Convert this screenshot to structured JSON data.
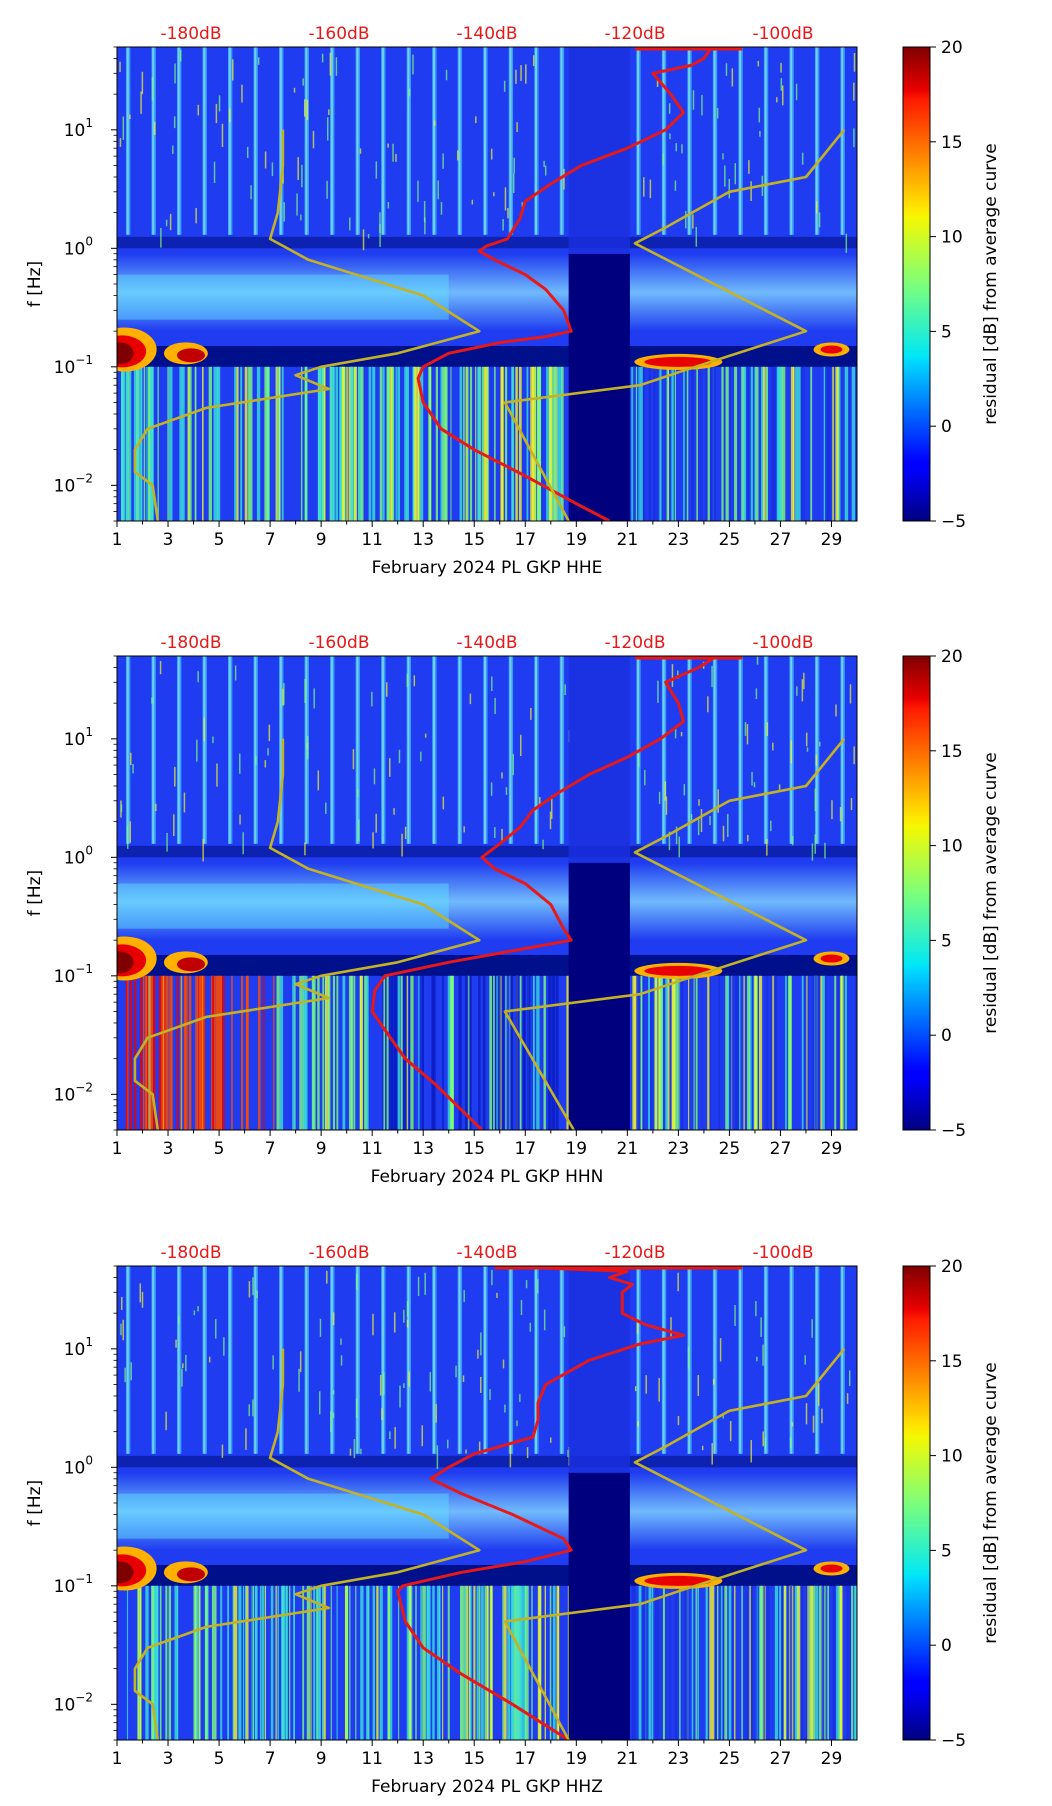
{
  "figure": {
    "colorbar_label": "residual [dB] from average curve",
    "colorbar_ticks": [
      "20",
      "15",
      "10",
      "5",
      "0",
      "−5"
    ],
    "top_ticks": [
      "-180dB",
      "-160dB",
      "-140dB",
      "-120dB",
      "-100dB"
    ],
    "y_label": "f [Hz]"
  },
  "chart_data": [
    {
      "type": "heatmap",
      "xlabel": "February 2024 PL GKP  HHE",
      "ylabel": "f [Hz]",
      "x_ticks": [
        "1",
        "3",
        "5",
        "7",
        "9",
        "11",
        "13",
        "15",
        "17",
        "19",
        "21",
        "23",
        "25",
        "27",
        "29"
      ],
      "y_ticks": [
        "10^1",
        "10^0",
        "10^-1",
        "10^-2"
      ],
      "xlim": [
        1,
        30
      ],
      "ylim_hz": [
        0.005,
        50
      ],
      "y_scale": "log",
      "top_axis": {
        "ticks": [
          "-180dB",
          "-160dB",
          "-140dB",
          "-120dB",
          "-100dB"
        ],
        "color": "#e81818"
      },
      "colorbar": {
        "label": "residual [dB] from average curve",
        "range": [
          -5,
          20
        ],
        "colormap": "jet",
        "ticks": [
          20,
          15,
          10,
          5,
          0,
          -5
        ]
      },
      "data_gap_days": [
        18.7,
        21.1
      ],
      "series": [
        {
          "color": "#e81818",
          "points": [
            [
              24.3,
              50
            ],
            [
              24.0,
              40
            ],
            [
              23.5,
              35
            ],
            [
              22.0,
              30
            ],
            [
              22.7,
              20
            ],
            [
              23.2,
              14
            ],
            [
              22.5,
              10
            ],
            [
              21.0,
              7
            ],
            [
              19.2,
              5
            ],
            [
              18.0,
              3.5
            ],
            [
              17.0,
              2.5
            ],
            [
              16.8,
              1.8
            ],
            [
              16.3,
              1.2
            ],
            [
              15.5,
              1.05
            ],
            [
              15.2,
              0.95
            ],
            [
              15.8,
              0.8
            ],
            [
              17.0,
              0.6
            ],
            [
              17.8,
              0.45
            ],
            [
              18.5,
              0.3
            ],
            [
              18.8,
              0.2
            ],
            [
              17.8,
              0.18
            ],
            [
              16.0,
              0.16
            ],
            [
              14.0,
              0.13
            ],
            [
              13.0,
              0.1
            ],
            [
              12.8,
              0.08
            ],
            [
              13.0,
              0.05
            ],
            [
              13.7,
              0.03
            ],
            [
              15.0,
              0.02
            ],
            [
              17.0,
              0.012
            ],
            [
              19.0,
              0.007
            ],
            [
              20.3,
              0.005
            ]
          ]
        },
        {
          "color": "#c4b225",
          "points": [
            [
              7.5,
              10
            ],
            [
              7.5,
              5
            ],
            [
              7.3,
              2
            ],
            [
              7.0,
              1.2
            ],
            [
              8.5,
              0.8
            ],
            [
              13.0,
              0.4
            ],
            [
              15.2,
              0.2
            ],
            [
              12.0,
              0.13
            ],
            [
              9.0,
              0.1
            ],
            [
              8.0,
              0.085
            ],
            [
              9.3,
              0.065
            ],
            [
              4.5,
              0.045
            ],
            [
              2.2,
              0.03
            ],
            [
              1.7,
              0.02
            ],
            [
              1.7,
              0.013
            ],
            [
              2.4,
              0.01
            ],
            [
              2.6,
              0.005
            ]
          ]
        },
        {
          "color": "#c4b225",
          "points": [
            [
              29.5,
              10
            ],
            [
              28.0,
              4
            ],
            [
              25.0,
              3
            ],
            [
              22.5,
              1.5
            ],
            [
              21.3,
              1.1
            ],
            [
              28.0,
              0.2
            ],
            [
              23.0,
              0.09
            ],
            [
              21.5,
              0.07
            ],
            [
              16.2,
              0.05
            ],
            [
              18.7,
              0.005
            ]
          ]
        }
      ]
    },
    {
      "type": "heatmap",
      "xlabel": "February 2024 PL GKP  HHN",
      "ylabel": "f [Hz]",
      "x_ticks": [
        "1",
        "3",
        "5",
        "7",
        "9",
        "11",
        "13",
        "15",
        "17",
        "19",
        "21",
        "23",
        "25",
        "27",
        "29"
      ],
      "y_ticks": [
        "10^1",
        "10^0",
        "10^-1",
        "10^-2"
      ],
      "xlim": [
        1,
        30
      ],
      "ylim_hz": [
        0.005,
        50
      ],
      "y_scale": "log",
      "top_axis": {
        "ticks": [
          "-180dB",
          "-160dB",
          "-140dB",
          "-120dB",
          "-100dB"
        ],
        "color": "#e81818"
      },
      "colorbar": {
        "label": "residual [dB] from average curve",
        "range": [
          -5,
          20
        ],
        "colormap": "jet",
        "ticks": [
          20,
          15,
          10,
          5,
          0,
          -5
        ]
      },
      "data_gap_days": [
        18.7,
        21.1
      ],
      "series": [
        {
          "color": "#e81818",
          "points": [
            [
              24.5,
              50
            ],
            [
              23.8,
              40
            ],
            [
              22.5,
              30
            ],
            [
              23.0,
              20
            ],
            [
              23.2,
              14
            ],
            [
              22.3,
              10
            ],
            [
              21.0,
              7
            ],
            [
              19.5,
              5
            ],
            [
              18.3,
              3.5
            ],
            [
              17.3,
              2.5
            ],
            [
              16.8,
              1.8
            ],
            [
              16.0,
              1.3
            ],
            [
              15.3,
              1.0
            ],
            [
              15.8,
              0.8
            ],
            [
              17.0,
              0.6
            ],
            [
              18.0,
              0.4
            ],
            [
              18.5,
              0.25
            ],
            [
              18.8,
              0.2
            ],
            [
              17.0,
              0.17
            ],
            [
              14.0,
              0.13
            ],
            [
              11.5,
              0.1
            ],
            [
              11.1,
              0.075
            ],
            [
              11.0,
              0.05
            ],
            [
              11.5,
              0.035
            ],
            [
              12.3,
              0.02
            ],
            [
              13.5,
              0.012
            ],
            [
              15.3,
              0.005
            ]
          ]
        },
        {
          "color": "#c4b225",
          "points": [
            [
              7.5,
              10
            ],
            [
              7.5,
              5
            ],
            [
              7.3,
              2
            ],
            [
              7.0,
              1.2
            ],
            [
              8.5,
              0.8
            ],
            [
              13.0,
              0.4
            ],
            [
              15.2,
              0.2
            ],
            [
              12.0,
              0.13
            ],
            [
              9.0,
              0.1
            ],
            [
              8.0,
              0.085
            ],
            [
              9.3,
              0.065
            ],
            [
              4.5,
              0.045
            ],
            [
              2.2,
              0.03
            ],
            [
              1.7,
              0.02
            ],
            [
              1.7,
              0.013
            ],
            [
              2.4,
              0.01
            ],
            [
              2.6,
              0.005
            ]
          ]
        },
        {
          "color": "#c4b225",
          "points": [
            [
              29.5,
              10
            ],
            [
              28.0,
              4
            ],
            [
              25.0,
              3
            ],
            [
              22.5,
              1.5
            ],
            [
              21.3,
              1.1
            ],
            [
              28.0,
              0.2
            ],
            [
              23.0,
              0.09
            ],
            [
              21.5,
              0.07
            ],
            [
              16.2,
              0.05
            ],
            [
              18.9,
              0.005
            ]
          ]
        }
      ]
    },
    {
      "type": "heatmap",
      "xlabel": "February 2024 PL GKP  HHZ",
      "ylabel": "f [Hz]",
      "x_ticks": [
        "1",
        "3",
        "5",
        "7",
        "9",
        "11",
        "13",
        "15",
        "17",
        "19",
        "21",
        "23",
        "25",
        "27",
        "29"
      ],
      "y_ticks": [
        "10^1",
        "10^0",
        "10^-1",
        "10^-2"
      ],
      "xlim": [
        1,
        30
      ],
      "ylim_hz": [
        0.005,
        50
      ],
      "y_scale": "log",
      "top_axis": {
        "ticks": [
          "-180dB",
          "-160dB",
          "-140dB",
          "-120dB",
          "-100dB"
        ],
        "color": "#e81818"
      },
      "colorbar": {
        "label": "residual [dB] from average curve",
        "range": [
          -5,
          20
        ],
        "colormap": "jet",
        "ticks": [
          20,
          15,
          10,
          5,
          0,
          -5
        ]
      },
      "data_gap_days": [
        18.7,
        21.1
      ],
      "series": [
        {
          "color": "#e81818",
          "points": [
            [
              15.8,
              50
            ],
            [
              21.0,
              45
            ],
            [
              20.3,
              40
            ],
            [
              21.2,
              35
            ],
            [
              20.8,
              30
            ],
            [
              20.8,
              20
            ],
            [
              21.7,
              16
            ],
            [
              23.2,
              13
            ],
            [
              21.5,
              11
            ],
            [
              19.5,
              8
            ],
            [
              17.8,
              5
            ],
            [
              17.5,
              3.5
            ],
            [
              17.5,
              2.5
            ],
            [
              17.3,
              1.8
            ],
            [
              15.0,
              1.3
            ],
            [
              14.0,
              1.0
            ],
            [
              13.3,
              0.8
            ],
            [
              14.5,
              0.6
            ],
            [
              16.5,
              0.4
            ],
            [
              18.5,
              0.25
            ],
            [
              18.8,
              0.2
            ],
            [
              17.0,
              0.16
            ],
            [
              14.5,
              0.13
            ],
            [
              12.2,
              0.1
            ],
            [
              12.0,
              0.09
            ],
            [
              12.3,
              0.05
            ],
            [
              13.0,
              0.03
            ],
            [
              14.5,
              0.018
            ],
            [
              16.5,
              0.01
            ],
            [
              18.7,
              0.005
            ]
          ]
        },
        {
          "color": "#c4b225",
          "points": [
            [
              7.5,
              10
            ],
            [
              7.5,
              5
            ],
            [
              7.3,
              2
            ],
            [
              7.0,
              1.2
            ],
            [
              8.5,
              0.8
            ],
            [
              13.0,
              0.4
            ],
            [
              15.2,
              0.2
            ],
            [
              12.0,
              0.13
            ],
            [
              9.0,
              0.1
            ],
            [
              8.0,
              0.085
            ],
            [
              9.3,
              0.065
            ],
            [
              4.5,
              0.045
            ],
            [
              2.2,
              0.03
            ],
            [
              1.7,
              0.02
            ],
            [
              1.7,
              0.013
            ],
            [
              2.4,
              0.01
            ],
            [
              2.6,
              0.005
            ]
          ]
        },
        {
          "color": "#c4b225",
          "points": [
            [
              29.5,
              10
            ],
            [
              28.0,
              4
            ],
            [
              25.0,
              3
            ],
            [
              22.5,
              1.5
            ],
            [
              21.3,
              1.1
            ],
            [
              28.0,
              0.2
            ],
            [
              23.0,
              0.09
            ],
            [
              21.5,
              0.07
            ],
            [
              16.2,
              0.05
            ],
            [
              18.7,
              0.005
            ]
          ]
        }
      ]
    }
  ]
}
